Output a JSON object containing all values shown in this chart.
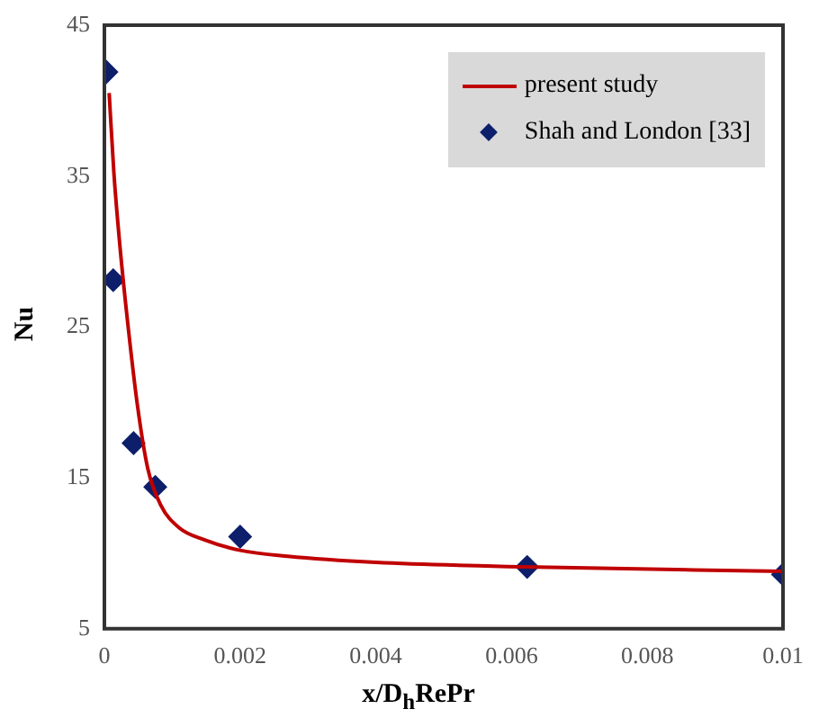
{
  "chart_data": {
    "type": "line",
    "xlabel": "x/D$_{h}$RePr",
    "ylabel": "Nu",
    "xlim": [
      0,
      0.01
    ],
    "xticks": [
      0,
      0.002,
      0.004,
      0.006,
      0.008,
      0.01
    ],
    "ylim": [
      5,
      45
    ],
    "yticks": [
      5,
      15,
      25,
      35,
      45
    ],
    "grid": false,
    "legend": "top right",
    "series": [
      {
        "name": "present study",
        "color": "#c00000",
        "marker": "none",
        "x": [
          7e-05,
          0.00014,
          0.00023,
          0.00035,
          0.00049,
          0.00064,
          0.00083,
          0.0011,
          0.00147,
          0.002,
          0.0027,
          0.004,
          0.0062,
          0.01
        ],
        "values": [
          40.5,
          35.2,
          30.3,
          25.0,
          19.7,
          15.6,
          13.2,
          11.7,
          10.9,
          10.2,
          9.8,
          9.4,
          9.1,
          8.8
        ]
      },
      {
        "name": "Shah and London [33]",
        "type": "scatter",
        "color": "#0d1f6b",
        "marker": "diamond",
        "x": [
          3e-05,
          0.00013,
          0.00043,
          0.00075,
          0.002,
          0.00623,
          0.01
        ],
        "values": [
          41.9,
          28.1,
          17.3,
          14.4,
          11.1,
          9.1,
          8.6
        ]
      }
    ]
  }
}
